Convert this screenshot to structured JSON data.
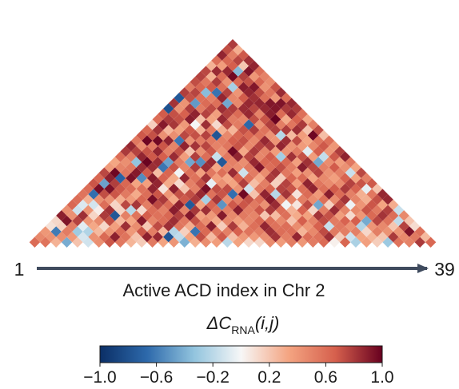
{
  "chart_data": {
    "type": "heatmap",
    "layout": "triangular-upper",
    "n": 39,
    "x_start_label": "1",
    "x_end_label": "39",
    "xlabel": "Active ACD index in Chr 2",
    "colorbar": {
      "label_main": "ΔC",
      "label_sub": "RNA",
      "label_args": "(i,j)",
      "range": [
        -1.0,
        1.0
      ],
      "ticks": [
        "−1.0",
        "−0.6",
        "−0.2",
        "0.2",
        "0.6",
        "1.0"
      ],
      "colormap": [
        "#0b2f66",
        "#2d69ab",
        "#92c4de",
        "#f7f7f7",
        "#f4a582",
        "#d6604d",
        "#67001f"
      ]
    },
    "values": [
      [
        0.61,
        0.57,
        0.28,
        -0.42,
        0.21,
        -0.13,
        0.44,
        0.7,
        0.55,
        0.27,
        0.18,
        0.54,
        0.34,
        0.41,
        -0.4,
        0.29,
        0.45,
        0.37,
        -0.2,
        0.35,
        0.13,
        0.13,
        0.46,
        0.38,
        0.52,
        0.4,
        0.53,
        0.61,
        0.03,
        0.64,
        -0.25,
        0.36,
        0.17,
        -0.3,
        0.57,
        0.5,
        0.8,
        0.63
      ],
      [
        0.47,
        0.42,
        0.44,
        0.39,
        -0.11,
        0.43,
        0.62,
        0.89,
        0.57,
        0.21,
        0.89,
        0.86,
        -0.78,
        -0.18,
        0.34,
        0.73,
        0.24,
        0.69,
        0.23,
        0.4,
        0.39,
        0.44,
        0.83,
        0.52,
        0.87,
        0.6,
        0.58,
        0.84,
        0.18,
        -0.14,
        0.34,
        0.27,
        0.2,
        0.8,
        0.47,
        0.54,
        0.25
      ],
      [
        0.4,
        -0.6,
        0.53,
        -0.29,
        -0.23,
        0.25,
        0.42,
        0.6,
        0.39,
        0.7,
        0.52,
        0.26,
        -0.22,
        0.16,
        -0.63,
        0.62,
        0.56,
        0.51,
        0.66,
        0.57,
        0.52,
        0.84,
        0.6,
        0.6,
        0.27,
        0.47,
        0.74,
        0.54,
        0.52,
        0.51,
        0.13,
        0.52,
        0.42,
        0.42,
        0.93,
        0.59
      ],
      [
        0.09,
        0.16,
        0.53,
        -0.07,
        0.32,
        0.13,
        0.36,
        0.84,
        0.45,
        0.19,
        0.74,
        0.84,
        0.56,
        0.3,
        0.61,
        0.9,
        0.17,
        0.8,
        0.28,
        0.59,
        0.87,
        0.58,
        0.6,
        0.45,
        0.4,
        0.66,
        -0.16,
        0.55,
        0.43,
        -0.23,
        0.41,
        0.47,
        0.2,
        0.77,
        0.11
      ],
      [
        0.13,
        0.93,
        0.77,
        0.41,
        0.47,
        0.73,
        0.26,
        0.33,
        0.91,
        0.49,
        0.6,
        0.84,
        0.55,
        0.72,
        0.45,
        0.31,
        0.48,
        0.37,
        0.49,
        0.63,
        0.59,
        0.47,
        0.21,
        0.67,
        0.5,
        0.74,
        0.53,
        0.65,
        0.67,
        -0.43,
        0.76,
        0.58,
        -0.18,
        0.21
      ],
      [
        0.89,
        0.43,
        0.84,
        0.14,
        0.8,
        -0.77,
        0.51,
        0.57,
        0.67,
        0.58,
        0.63,
        0.78,
        0.92,
        0.36,
        0.39,
        0.91,
        0.47,
        0.54,
        0.49,
        0.2,
        0.24,
        0.59,
        0.31,
        0.35,
        0.82,
        0.72,
        0.37,
        0.12,
        0.4,
        0.62,
        0.82,
        0.6,
        0.47
      ],
      [
        0.44,
        -0.14,
        0.42,
        0.04,
        0.83,
        0.15,
        -0.21,
        0.12,
        0.6,
        0.51,
        0.9,
        0.5,
        0.81,
        0.84,
        0.58,
        0.52,
        0.9,
        0.52,
        0.7,
        0.8,
        0.6,
        0.28,
        0.65,
        0.14,
        0.52,
        0.85,
        0.49,
        0.47,
        0.71,
        0.54,
        0.78,
        -0.16
      ],
      [
        0.63,
        -0.09,
        -0.12,
        0.6,
        0.14,
        0.75,
        0.81,
        0.52,
        0.74,
        0.61,
        0.89,
        -0.76,
        0.34,
        0.65,
        -0.51,
        0.69,
        0.7,
        0.54,
        0.43,
        0.85,
        -0.02,
        0.07,
        0.74,
        -0.44,
        0.16,
        0.74,
        -0.03,
        0.41,
        0.7,
        0.34,
        0.3
      ],
      [
        0.6,
        0.28,
        0.44,
        0.43,
        0.3,
        0.38,
        0.63,
        0.95,
        0.8,
        0.32,
        0.69,
        0.8,
        -0.26,
        0.81,
        0.44,
        0.53,
        0.72,
        0.6,
        0.91,
        0.47,
        0.5,
        0.52,
        0.45,
        0.59,
        0.46,
        0.82,
        0.49,
        0.29,
        0.72,
        0.86
      ],
      [
        0.57,
        -0.65,
        0.73,
        0.7,
        0.54,
        0.31,
        0.6,
        0.7,
        0.4,
        0.72,
        0.73,
        0.86,
        0.58,
        0.71,
        -0.65,
        0.97,
        0.21,
        0.88,
        -0.21,
        0.82,
        0.08,
        0.61,
        0.39,
        0.9,
        0.61,
        0.51,
        0.29,
        0.55,
        0.86
      ],
      [
        0.6,
        0.95,
        0.94,
        0.69,
        0.6,
        0.58,
        0.88,
        0.08,
        0.89,
        0.21,
        0.51,
        0.95,
        0.73,
        0.74,
        0.42,
        -0.13,
        0.55,
        0.64,
        0.77,
        0.71,
        0.59,
        0.88,
        0.59,
        0.68,
        0.8,
        0.65,
        -0.05,
        0.22
      ],
      [
        0.7,
        -0.46,
        0.78,
        0.63,
        0.34,
        0.36,
        0.87,
        0.31,
        0.12,
        0.51,
        0.72,
        -0.05,
        0.43,
        0.34,
        0.78,
        0.23,
        0.52,
        0.16,
        0.77,
        0.36,
        0.88,
        0.56,
        0.46,
        0.46,
        0.77,
        0.71,
        0.69
      ],
      [
        0.63,
        0.89,
        -0.7,
        0.94,
        -0.54,
        0.91,
        0.65,
        0.31,
        0.87,
        0.58,
        0.83,
        0.37,
        0.32,
        0.66,
        0.58,
        0.32,
        0.79,
        0.18,
        0.64,
        0.62,
        0.33,
        0.47,
        0.36,
        0.65,
        0.34,
        0.51
      ],
      [
        0.75,
        0.98,
        0.55,
        0.91,
        0.69,
        0.24,
        0.64,
        -0.02,
        0.58,
        0.36,
        0.55,
        0.59,
        0.85,
        -0.14,
        0.53,
        0.45,
        0.82,
        0.55,
        0.36,
        0.43,
        0.77,
        0.43,
        0.51,
        -0.15,
        0.75
      ],
      [
        0.38,
        0.49,
        0.54,
        0.85,
        0.84,
        -0.62,
        0.71,
        0.48,
        0.79,
        0.85,
        0.32,
        0.5,
        0.47,
        0.54,
        0.93,
        0.6,
        0.73,
        0.52,
        0.9,
        0.75,
        0.51,
        0.68,
        0.43,
        0.33
      ],
      [
        0.33,
        0.44,
        -0.33,
        0.99,
        0.85,
        -0.46,
        0.53,
        -0.44,
        -0.53,
        0.86,
        -0.76,
        0.51,
        0.44,
        0.86,
        0.63,
        0.64,
        0.63,
        0.36,
        0.83,
        -0.43,
        0.45,
        0.37,
        0.55
      ],
      [
        0.61,
        0.53,
        0.87,
        0.69,
        0.67,
        0.85,
        0.37,
        0.78,
        0.6,
        -0.16,
        0.55,
        0.87,
        0.76,
        0.48,
        0.68,
        -0.27,
        0.83,
        0.72,
        0.37,
        -0.17,
        0.69,
        0.88
      ],
      [
        0.8,
        0.77,
        0.71,
        0.87,
        0.51,
        0.72,
        0.21,
        0.44,
        0.7,
        0.43,
        0.97,
        0.32,
        0.8,
        0.49,
        0.37,
        0.42,
        0.53,
        -0.07,
        0.67,
        0.4,
        0.79
      ],
      [
        0.86,
        0.46,
        0.54,
        0.7,
        0.49,
        0.88,
        0.82,
        0.76,
        0.5,
        0.56,
        0.71,
        0.47,
        0.77,
        0.8,
        0.87,
        0.42,
        0.38,
        0.47,
        0.69,
        0.4
      ],
      [
        0.55,
        0.98,
        0.97,
        0.88,
        -0.62,
        0.43,
        0.53,
        0.54,
        0.52,
        0.67,
        0.72,
        0.47,
        0.86,
        0.41,
        0.84,
        0.74,
        0.33,
        0.56,
        0.59
      ],
      [
        0.69,
        0.72,
        0.43,
        0.44,
        0.75,
        0.72,
        0.77,
        -0.78,
        0.47,
        0.64,
        0.63,
        0.57,
        0.42,
        -0.21,
        0.25,
        0.37,
        0.98,
        0.23
      ],
      [
        0.62,
        0.82,
        0.26,
        0.35,
        0.69,
        0.28,
        0.53,
        0.29,
        0.27,
        0.72,
        0.79,
        0.57,
        0.78,
        0.79,
        0.84,
        0.21,
        0.74
      ],
      [
        0.16,
        0.91,
        0.81,
        0.39,
        -0.01,
        0.84,
        0.12,
        0.74,
        0.53,
        -0.68,
        0.43,
        0.78,
        0.52,
        0.56,
        0.8,
        0.51
      ],
      [
        0.6,
        0.8,
        0.72,
        0.9,
        0.23,
        0.34,
        0.86,
        0.53,
        0.49,
        0.73,
        0.71,
        0.99,
        0.31,
        0.66,
        0.32
      ],
      [
        0.68,
        0.72,
        0.66,
        0.88,
        0.77,
        0.36,
        0.78,
        0.61,
        0.86,
        0.5,
        0.9,
        0.61,
        0.86,
        0.59
      ],
      [
        -0.8,
        0.42,
        0.79,
        0.53,
        0.74,
        0.84,
        0.79,
        0.85,
        0.76,
        0.86,
        0.92,
        0.8,
        0.79
      ],
      [
        0.82,
        0.42,
        -0.49,
        0.61,
        0.59,
        -0.44,
        0.47,
        0.86,
        0.87,
        0.92,
        0.93,
        0.86
      ],
      [
        -0.76,
        0.72,
        0.59,
        0.51,
        0.87,
        0.48,
        0.68,
        0.83,
        0.59,
        0.4,
        0.61
      ],
      [
        0.78,
        0.76,
        -0.36,
        -0.63,
        0.77,
        0.41,
        0.87,
        0.73,
        0.56,
        0.85
      ],
      [
        0.53,
        0.63,
        0.68,
        0.59,
        -0.26,
        0.9,
        0.92,
        0.42,
        0.71
      ],
      [
        0.73,
        0.55,
        0.79,
        0.43,
        0.62,
        0.72,
        0.63,
        0.45
      ],
      [
        0.77,
        0.29,
        0.61,
        0.97,
        0.78,
        0.4,
        0.5
      ],
      [
        0.75,
        0.85,
        0.86,
        -0.37,
        0.93,
        0.59
      ],
      [
        0.28,
        0.37,
        0.67,
        0.2,
        0.87
      ],
      [
        0.6,
        0.63,
        0.76,
        0.83
      ],
      [
        0.87,
        0.52,
        0.69
      ],
      [
        0.73,
        0.3
      ],
      [
        0.79
      ]
    ]
  }
}
